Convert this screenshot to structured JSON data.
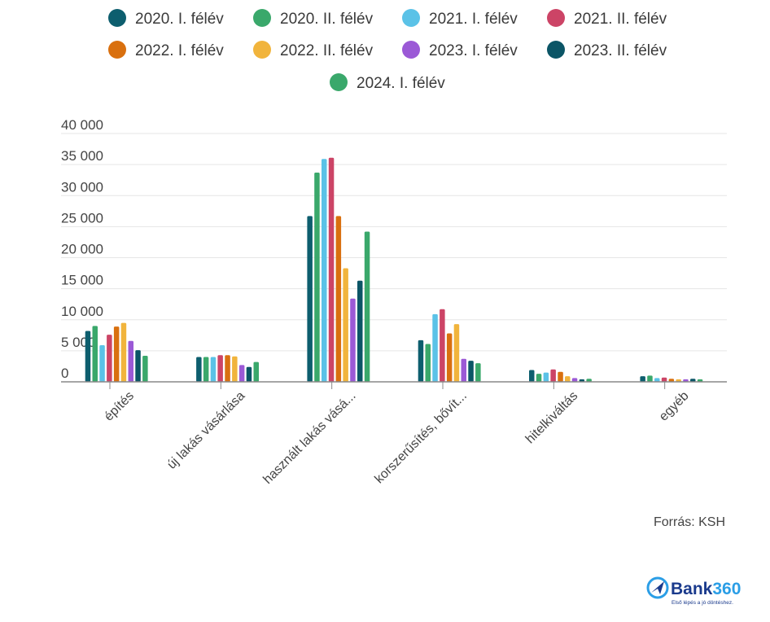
{
  "chart_data": {
    "type": "bar",
    "title": "",
    "xlabel": "",
    "ylabel": "",
    "ylim": [
      0,
      40000
    ],
    "yticks": [
      0,
      5000,
      10000,
      15000,
      20000,
      25000,
      30000,
      35000,
      40000
    ],
    "ytick_labels": [
      "0",
      "5 000",
      "10 000",
      "15 000",
      "20 000",
      "25 000",
      "30 000",
      "35 000",
      "40 000"
    ],
    "grid": true,
    "legend_position": "top-center",
    "categories": [
      "építés",
      "új lakás vásárlása",
      "használt lakás vásá...",
      "korszerűsítés, bővít...",
      "hitelkiváltás",
      "egyéb"
    ],
    "series": [
      {
        "name": "2020. I. félév",
        "color": "#0d5e6e",
        "values": [
          8200,
          4000,
          26700,
          6700,
          1900,
          900
        ]
      },
      {
        "name": "2020. II. félév",
        "color": "#3aa86b",
        "values": [
          9000,
          4000,
          33700,
          6100,
          1300,
          1000
        ]
      },
      {
        "name": "2021. I. félév",
        "color": "#5bc2e7",
        "values": [
          5900,
          4000,
          35900,
          10900,
          1500,
          600
        ]
      },
      {
        "name": "2021. II. félév",
        "color": "#cc4466",
        "values": [
          7600,
          4300,
          36100,
          11700,
          2000,
          700
        ]
      },
      {
        "name": "2022. I. félév",
        "color": "#d9700f",
        "values": [
          8900,
          4300,
          26700,
          7800,
          1600,
          500
        ]
      },
      {
        "name": "2022. II. félév",
        "color": "#f1b43c",
        "values": [
          9500,
          4100,
          18300,
          9300,
          900,
          400
        ]
      },
      {
        "name": "2023. I. félév",
        "color": "#9b59d6",
        "values": [
          6600,
          2700,
          13400,
          3700,
          600,
          400
        ]
      },
      {
        "name": "2023. II. félév",
        "color": "#0b5566",
        "values": [
          5100,
          2400,
          16300,
          3400,
          400,
          500
        ]
      },
      {
        "name": "2024. I. félév",
        "color": "#3aa86b",
        "values": [
          4200,
          3200,
          24200,
          3000,
          500,
          400
        ]
      }
    ]
  },
  "source": "Forrás: KSH",
  "brand": {
    "name_part1": "Bank",
    "name_part2": "360",
    "tagline": "Első lépés a jó döntéshez."
  }
}
